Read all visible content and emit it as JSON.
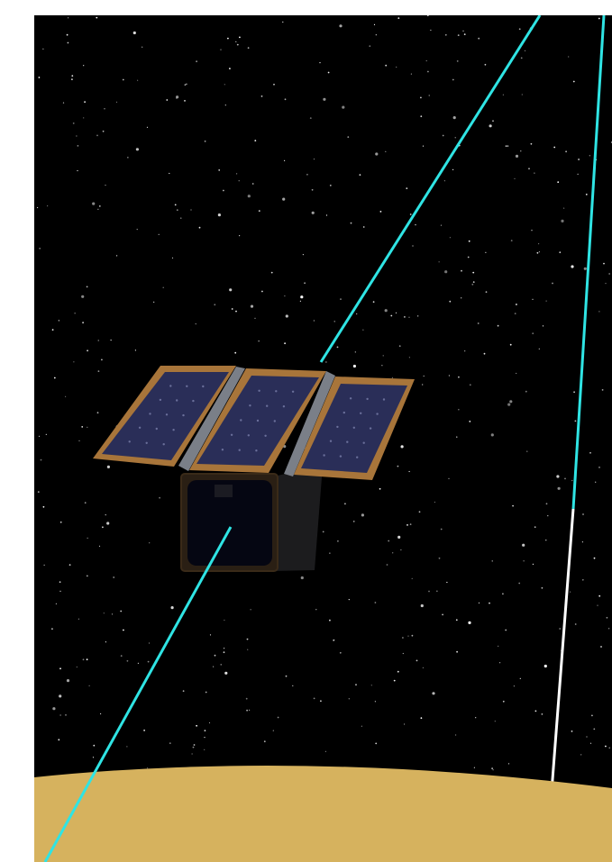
{
  "scene": {
    "background_color": "#000000",
    "planet_color": "#d6b25e",
    "orbit_line_color": "#2fe4e4",
    "ground_track_color": "#ffffff",
    "panel_frame_color": "#a8753a",
    "panel_cell_color": "#2a2e58",
    "body_color": "#141414",
    "body_face_color": "#050612",
    "hinge_color": "#7a7f88",
    "icons": [
      "satellite-icon",
      "star-field",
      "planet-surface"
    ]
  }
}
